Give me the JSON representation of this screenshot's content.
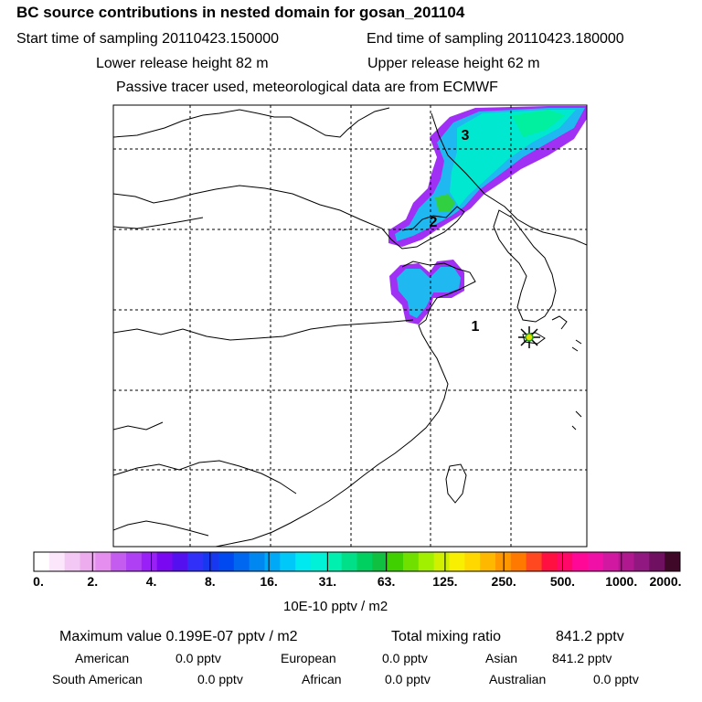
{
  "header": {
    "title": "BC  source contributions in nested domain for gosan_201104",
    "start_label": "Start time of sampling 20110423.150000",
    "end_label": "End time of sampling 20110423.180000",
    "lower_label": "Lower release height   82 m",
    "upper_label": "Upper release height   62 m",
    "tracer_note": "Passive tracer used, meteorological data are from ECMWF"
  },
  "map": {
    "labels": [
      "1",
      "2",
      "3"
    ],
    "receptor_marker": "receptor-star-icon"
  },
  "colorbar": {
    "tick_labels": [
      "0.",
      "2.",
      "4.",
      "8.",
      "16.",
      "31.",
      "63.",
      "125.",
      "250.",
      "500.",
      "1000.",
      "2000."
    ],
    "colors": [
      "#ffffff",
      "#fbe6fb",
      "#f4c8f5",
      "#ecacee",
      "#e58ef0",
      "#c45cf0",
      "#b040f4",
      "#9a20f8",
      "#7a08f0",
      "#5510f0",
      "#3030f8",
      "#1838f0",
      "#0048f0",
      "#0068f0",
      "#0088f0",
      "#00a8f8",
      "#00c8f8",
      "#00e8f0",
      "#00f0d8",
      "#00f0b0",
      "#00e088",
      "#00d060",
      "#10c040",
      "#40d000",
      "#70e000",
      "#a0f000",
      "#d0f000",
      "#f8f000",
      "#ffd800",
      "#ffb800",
      "#ff9800",
      "#ff7800",
      "#ff4820",
      "#ff1040",
      "#ff0868",
      "#ff0898",
      "#f010a8",
      "#d018a0",
      "#b01890",
      "#901880",
      "#701060",
      "#400828"
    ],
    "unit": "10E-10 pptv / m2"
  },
  "stats": {
    "max_label": "Maximum value  0.199E-07 pptv / m2",
    "total_label": "Total mixing ratio",
    "total_value": "841.2 pptv",
    "regions": [
      {
        "name": "American",
        "value": "0.0 pptv"
      },
      {
        "name": "European",
        "value": "0.0 pptv"
      },
      {
        "name": "Asian",
        "value": "841.2 pptv"
      },
      {
        "name": "South American",
        "value": "0.0 pptv"
      },
      {
        "name": "African",
        "value": "0.0 pptv"
      },
      {
        "name": "Australian",
        "value": "0.0 pptv"
      }
    ]
  }
}
